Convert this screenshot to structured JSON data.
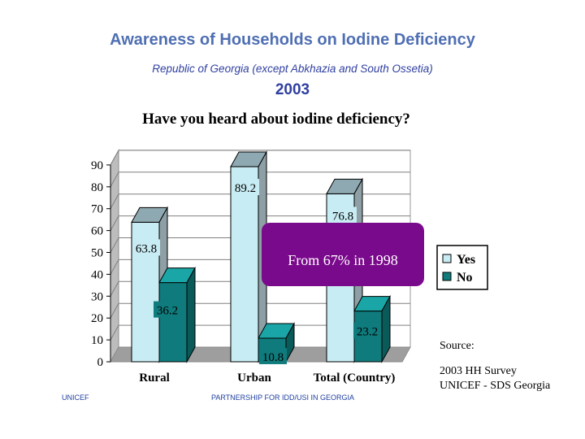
{
  "header": {
    "title": "Awareness of Households on Iodine Deficiency",
    "subtitle": "Republic of Georgia (except Abkhazia and South Ossetia)",
    "year": "2003"
  },
  "chart_data": {
    "type": "bar",
    "title": "Have you heard about iodine deficiency?",
    "categories": [
      "Rural",
      "Urban",
      "Total (Country)"
    ],
    "series": [
      {
        "name": "Yes",
        "values": [
          63.8,
          89.2,
          76.8
        ],
        "color": "#c8ecf3"
      },
      {
        "name": "No",
        "values": [
          36.2,
          10.8,
          23.2
        ],
        "color": "#0f7b7c"
      }
    ],
    "ylim": [
      0,
      90
    ],
    "yticks": [
      "0",
      "10",
      "20",
      "30",
      "40",
      "50",
      "60",
      "70",
      "80",
      "90"
    ],
    "data_labels": [
      [
        "63.8",
        "89.2",
        "76.8"
      ],
      [
        "36.2",
        "10.8",
        "23.2"
      ]
    ],
    "grid": true,
    "legend_position": "right",
    "annotation": "From 67% in 1998",
    "annotation_color": "#7a0a8c"
  },
  "source": {
    "label": "Source:",
    "line1": "2003 HH Survey",
    "line2": "UNICEF - SDS Georgia"
  },
  "footer": {
    "left": "UNICEF",
    "center": "PARTNERSHIP FOR IDD/USI IN GEORGIA"
  }
}
